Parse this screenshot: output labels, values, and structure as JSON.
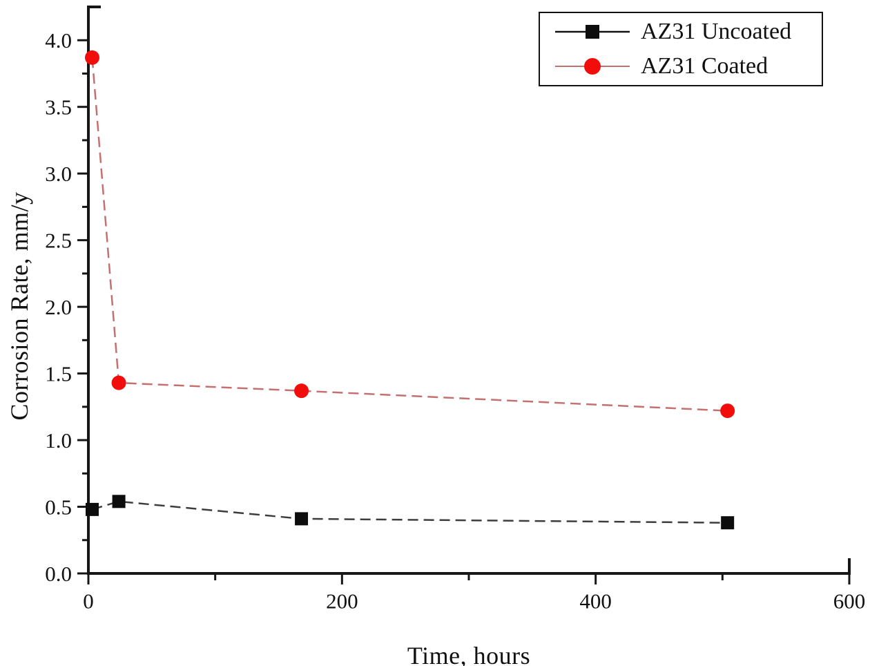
{
  "chart_data": {
    "type": "line",
    "title": "",
    "xlabel": "Time, hours",
    "ylabel": "Corrosion Rate, mm/y",
    "xlim": [
      0,
      600
    ],
    "ylim": [
      0,
      4.25
    ],
    "grid": false,
    "legend_position": "top-right",
    "x_major_ticks": [
      0,
      200,
      400,
      600
    ],
    "x_tick_labels": [
      "0",
      "200",
      "400",
      "600"
    ],
    "x_minor_ticks": [
      100,
      300,
      500
    ],
    "y_major_ticks": [
      0.0,
      0.5,
      1.0,
      1.5,
      2.0,
      2.5,
      3.0,
      3.5,
      4.0
    ],
    "y_tick_labels": [
      "0.0",
      "0.5",
      "1.0",
      "1.5",
      "2.0",
      "2.5",
      "3.0",
      "3.5",
      "4.0"
    ],
    "y_minor_step": 0.25,
    "axis_color": "#161616",
    "text_color": "#111111",
    "series": [
      {
        "name": "AZ31 Uncoated",
        "marker": "square",
        "marker_color": "#0d0d0d",
        "line_color": "#3d3d3d",
        "line_style": "dashed",
        "x": [
          3,
          24,
          168,
          504
        ],
        "y": [
          0.48,
          0.54,
          0.41,
          0.38
        ]
      },
      {
        "name": "AZ31 Coated",
        "marker": "circle",
        "marker_color": "#f20d0d",
        "line_color": "#c47070",
        "line_style": "dashed",
        "x": [
          3,
          24,
          168,
          504
        ],
        "y": [
          3.87,
          1.43,
          1.37,
          1.22
        ]
      }
    ]
  }
}
